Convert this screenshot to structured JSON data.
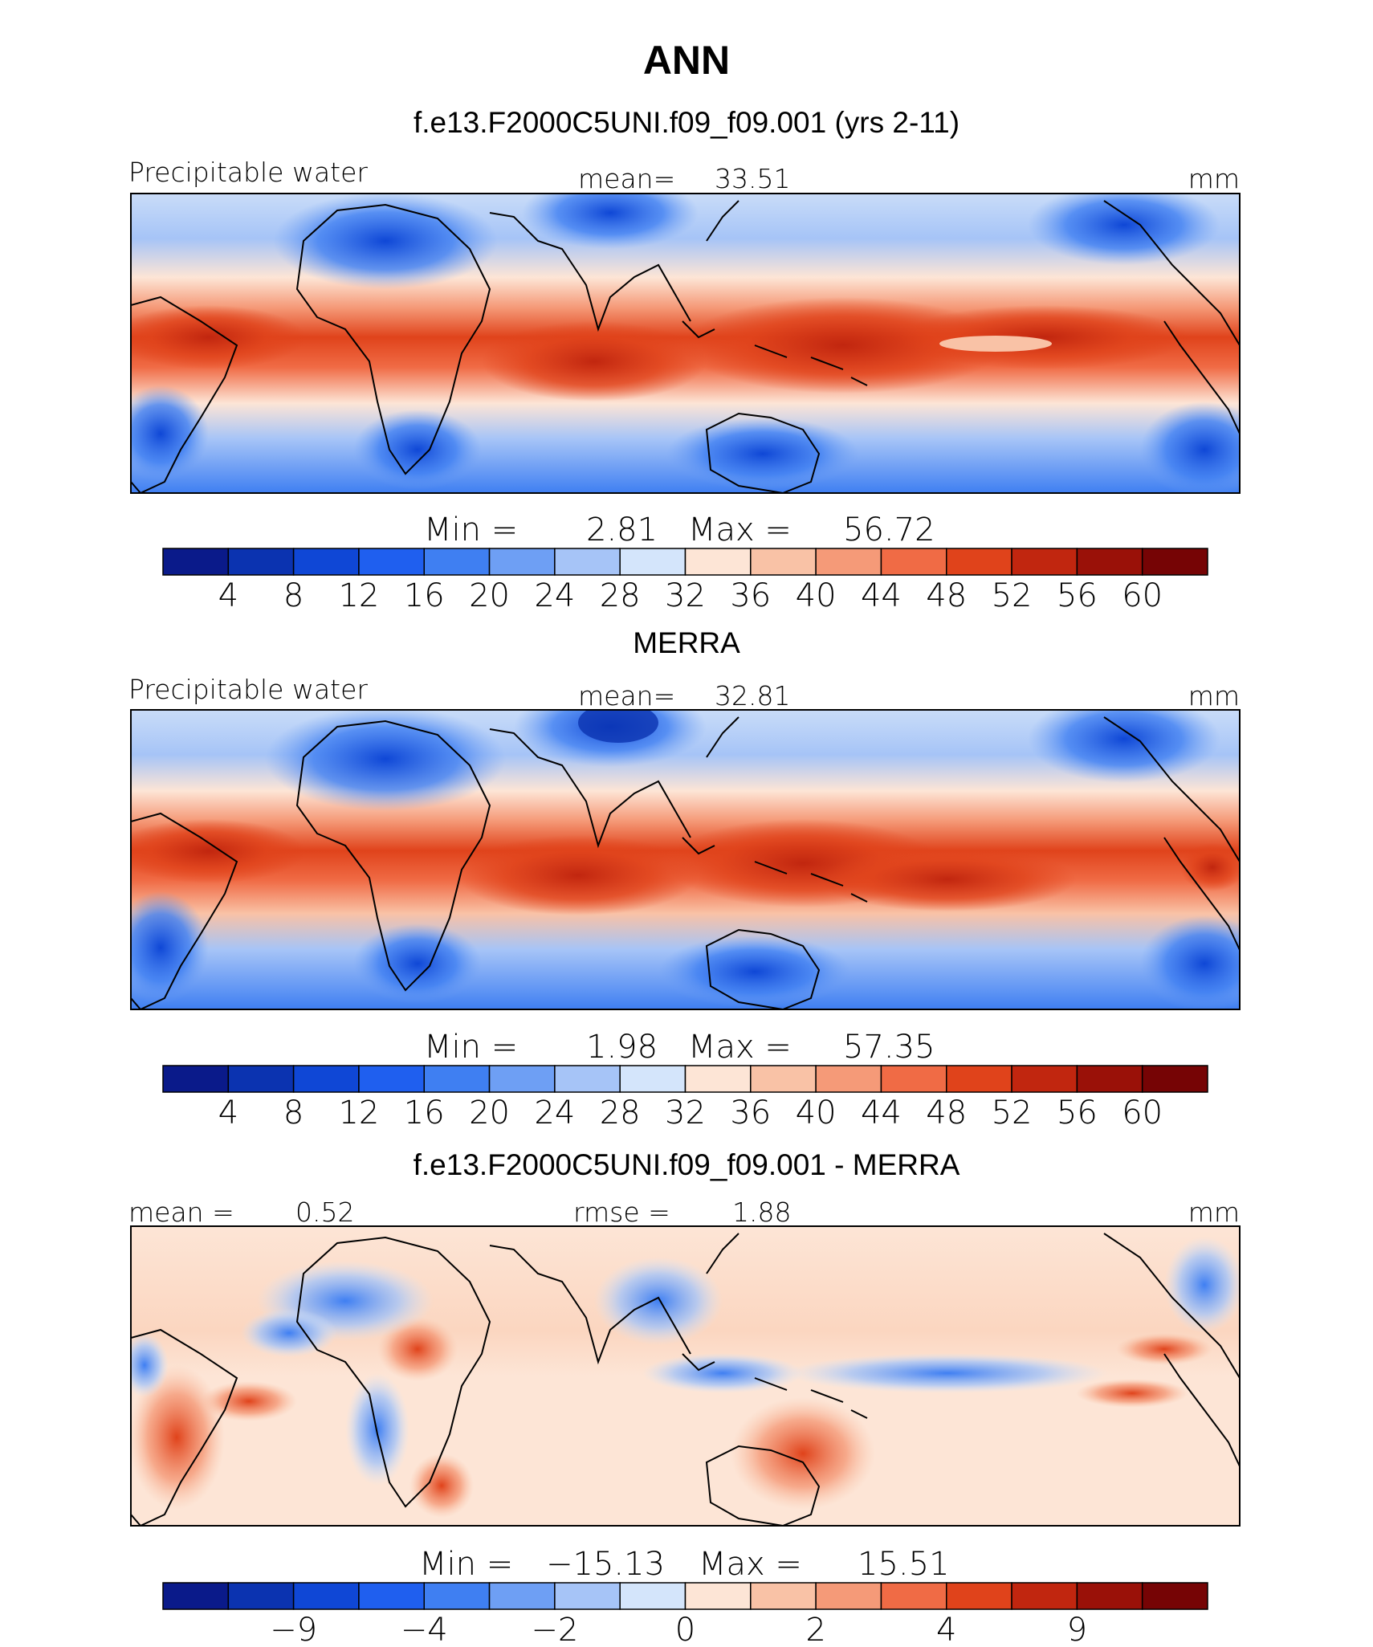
{
  "title": "ANN",
  "palette": {
    "precip": [
      "#0a1a8a",
      "#0b33b0",
      "#0f47d6",
      "#1f5fef",
      "#3f7ff2",
      "#6e9ff4",
      "#a6c4f7",
      "#d4e5fb",
      "#fde5d6",
      "#f9c2a6",
      "#f59a78",
      "#f06b45",
      "#e0431b",
      "#c1260f",
      "#9a1108",
      "#760405"
    ],
    "diff": [
      "#0a1a8a",
      "#0b33b0",
      "#0f47d6",
      "#1f5fef",
      "#3f7ff2",
      "#6e9ff4",
      "#a6c4f7",
      "#d4e5fb",
      "#fde5d6",
      "#f9c2a6",
      "#f59a78",
      "#f06b45",
      "#e0431b",
      "#c1260f",
      "#9a1108",
      "#760405"
    ]
  },
  "panels": [
    {
      "header": "f.e13.F2000C5UNI.f09_f09.001 (yrs 2-11)",
      "left_label": "Precipitable water",
      "center_label": "mean=",
      "center_value": "33.51",
      "units": "mm",
      "stats": {
        "min_label": "Min =",
        "min": "2.81",
        "max_label": "Max =",
        "max": "56.72"
      }
    },
    {
      "header": "MERRA",
      "left_label": "Precipitable water",
      "center_label": "mean=",
      "center_value": "32.81",
      "units": "mm",
      "stats": {
        "min_label": "Min =",
        "min": "1.98",
        "max_label": "Max =",
        "max": "57.35"
      }
    },
    {
      "header": "f.e13.F2000C5UNI.f09_f09.001 - MERRA",
      "left_label": "mean =",
      "left_value": "0.52",
      "center_label": "rmse =",
      "center_value": "1.88",
      "units": "mm",
      "stats": {
        "min_label": "Min =",
        "min": "−15.13",
        "max_label": "Max =",
        "max": "15.51"
      }
    }
  ],
  "chart_data": [
    {
      "type": "heatmap",
      "title": "f.e13.F2000C5UNI.f09_f09.001 (yrs 2-11)",
      "variable": "Precipitable water",
      "units": "mm",
      "mean": 33.51,
      "min": 2.81,
      "max": 56.72,
      "colorbar_levels": [
        4,
        8,
        12,
        16,
        20,
        24,
        28,
        32,
        36,
        40,
        44,
        48,
        52,
        56,
        60
      ],
      "colorbar_tick_labels": [
        "4",
        "8",
        "12",
        "16",
        "20",
        "24",
        "28",
        "32",
        "36",
        "40",
        "44",
        "48",
        "52",
        "56",
        "60"
      ]
    },
    {
      "type": "heatmap",
      "title": "MERRA",
      "variable": "Precipitable water",
      "units": "mm",
      "mean": 32.81,
      "min": 1.98,
      "max": 57.35,
      "colorbar_levels": [
        4,
        8,
        12,
        16,
        20,
        24,
        28,
        32,
        36,
        40,
        44,
        48,
        52,
        56,
        60
      ],
      "colorbar_tick_labels": [
        "4",
        "8",
        "12",
        "16",
        "20",
        "24",
        "28",
        "32",
        "36",
        "40",
        "44",
        "48",
        "52",
        "56",
        "60"
      ]
    },
    {
      "type": "heatmap",
      "title": "f.e13.F2000C5UNI.f09_f09.001 - MERRA",
      "units": "mm",
      "mean": 0.52,
      "rmse": 1.88,
      "min": -15.13,
      "max": 15.51,
      "colorbar_tick_labels": [
        "−9",
        "−4",
        "−2",
        "0",
        "2",
        "4",
        "9"
      ],
      "colorbar_tick_levels": [
        -9,
        -4,
        -2,
        0,
        2,
        4,
        9
      ]
    }
  ]
}
